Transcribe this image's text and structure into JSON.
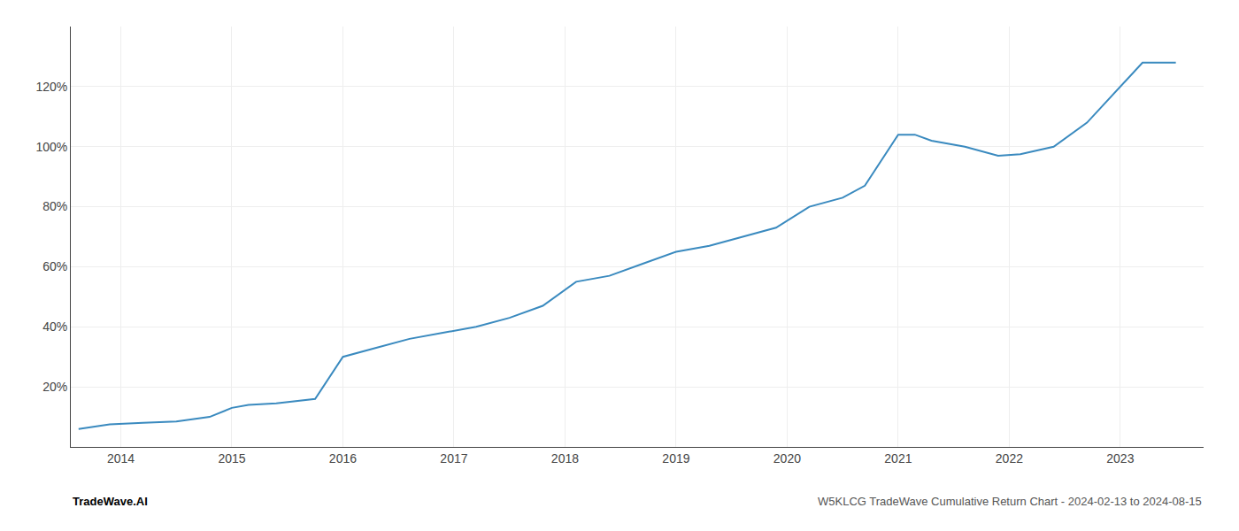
{
  "chart_data": {
    "type": "line",
    "x": [
      2013.62,
      2013.9,
      2014.2,
      2014.5,
      2014.8,
      2015.0,
      2015.15,
      2015.4,
      2015.75,
      2016.0,
      2016.3,
      2016.6,
      2016.9,
      2017.2,
      2017.5,
      2017.8,
      2018.1,
      2018.4,
      2018.7,
      2019.0,
      2019.3,
      2019.6,
      2019.9,
      2020.2,
      2020.5,
      2020.7,
      2021.0,
      2021.15,
      2021.3,
      2021.6,
      2021.9,
      2022.1,
      2022.4,
      2022.7,
      2022.95,
      2023.2,
      2023.5
    ],
    "values": [
      6,
      7.5,
      8,
      8.5,
      10,
      13,
      14,
      14.5,
      16,
      30,
      33,
      36,
      38,
      40,
      43,
      47,
      55,
      57,
      61,
      65,
      67,
      70,
      73,
      80,
      83,
      87,
      104,
      104,
      102,
      100,
      97,
      97.5,
      100,
      108,
      118,
      128,
      128
    ],
    "color": "#3a8abf",
    "xlim": [
      2013.55,
      2023.75
    ],
    "xticks": [
      2014,
      2015,
      2016,
      2017,
      2018,
      2019,
      2020,
      2021,
      2022,
      2023
    ],
    "ylim": [
      0,
      140
    ],
    "yticks": [
      {
        "value": 20,
        "label": "20%"
      },
      {
        "value": 40,
        "label": "40%"
      },
      {
        "value": 60,
        "label": "60%"
      },
      {
        "value": 80,
        "label": "80%"
      },
      {
        "value": 100,
        "label": "100%"
      },
      {
        "value": 120,
        "label": "120%"
      }
    ],
    "grid": true,
    "annotations": [
      "TradeWave.AI",
      "W5KLCG TradeWave Cumulative Return Chart - 2024-02-13 to 2024-08-15"
    ]
  }
}
